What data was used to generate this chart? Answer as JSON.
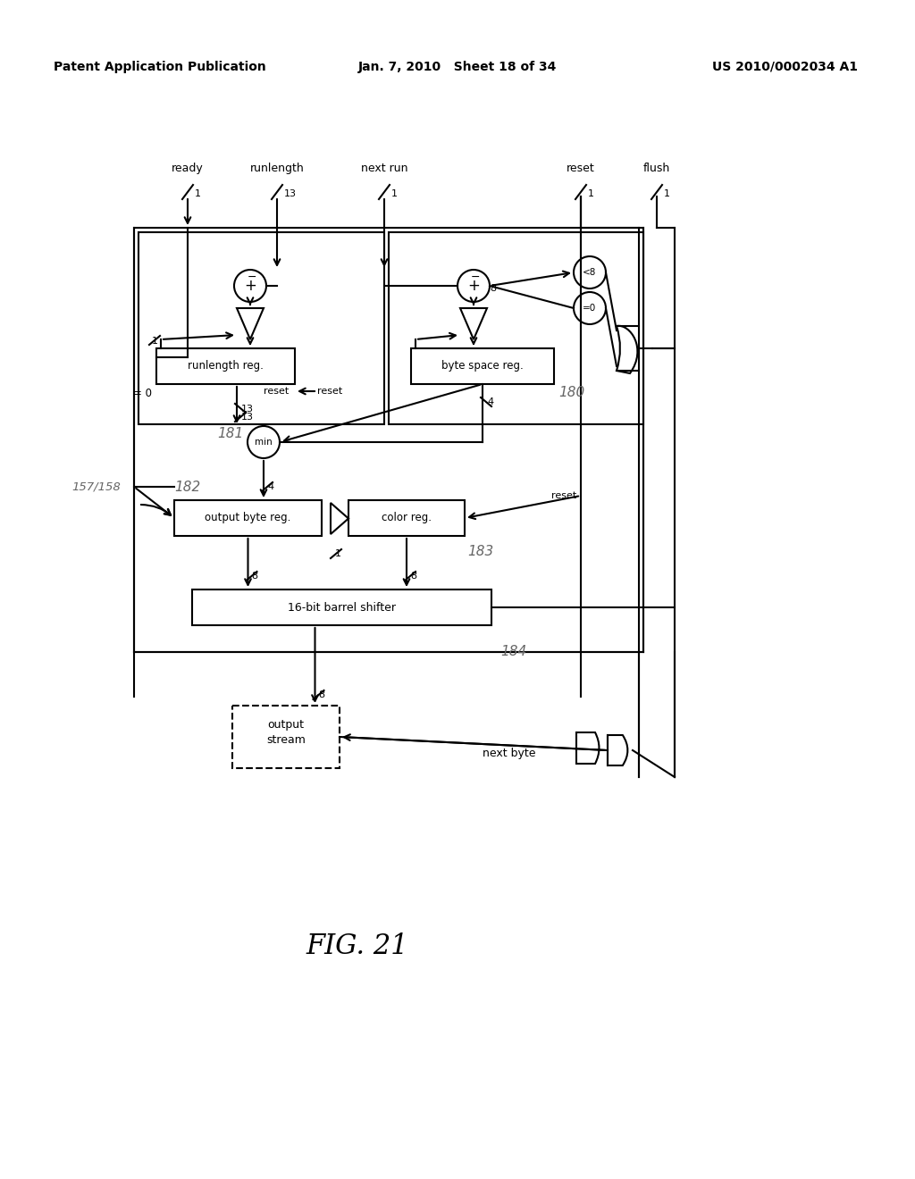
{
  "title_left": "Patent Application Publication",
  "title_center": "Jan. 7, 2010   Sheet 18 of 34",
  "title_right": "US 2010/0002034 A1",
  "fig_label": "FIG. 21",
  "bg_color": "#ffffff",
  "line_color": "#000000",
  "italic_color": "#555555"
}
